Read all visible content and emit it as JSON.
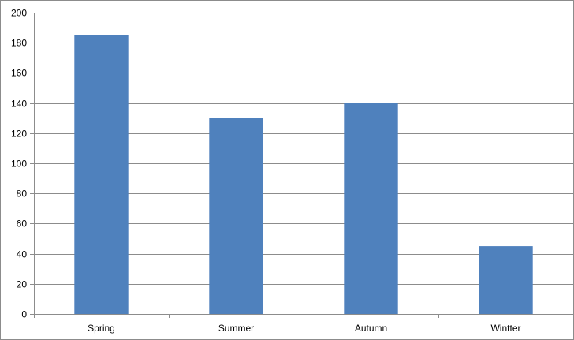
{
  "chart_data": {
    "type": "bar",
    "categories": [
      "Spring",
      "Summer",
      "Autumn",
      "Wintter"
    ],
    "values": [
      185,
      130,
      140,
      45
    ],
    "title": "",
    "xlabel": "",
    "ylabel": "",
    "ylim": [
      0,
      200
    ],
    "ytick_step": 20,
    "yticks": [
      "0",
      "20",
      "40",
      "60",
      "80",
      "100",
      "120",
      "140",
      "160",
      "180",
      "200"
    ],
    "grid": true,
    "legend": "none",
    "bar_color": "#4f81bd",
    "grid_color": "#8c8c8c",
    "axis_color": "#8c8c8c"
  }
}
